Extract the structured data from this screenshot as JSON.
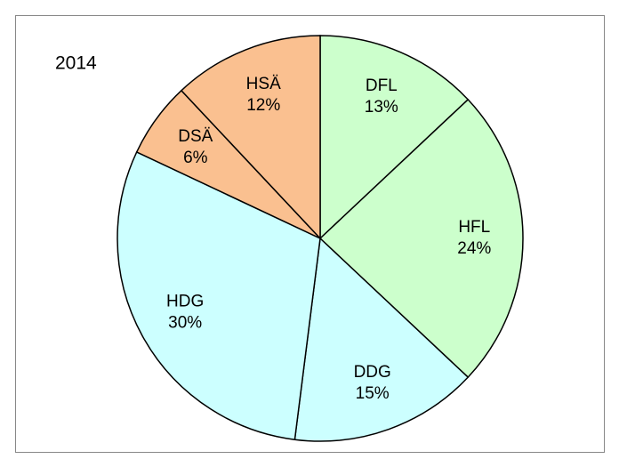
{
  "chart_data": {
    "type": "pie",
    "title": "2014",
    "categories": [
      "DFL",
      "HFL",
      "DDG",
      "HDG",
      "DSÄ",
      "HSÄ"
    ],
    "values": [
      13,
      24,
      15,
      30,
      6,
      12
    ],
    "value_labels": [
      "13%",
      "24%",
      "15%",
      "30%",
      "6%",
      "12%"
    ],
    "colors": [
      "#ccffcc",
      "#ccffcc",
      "#ccffff",
      "#ccffff",
      "#fac090",
      "#fac090"
    ]
  }
}
